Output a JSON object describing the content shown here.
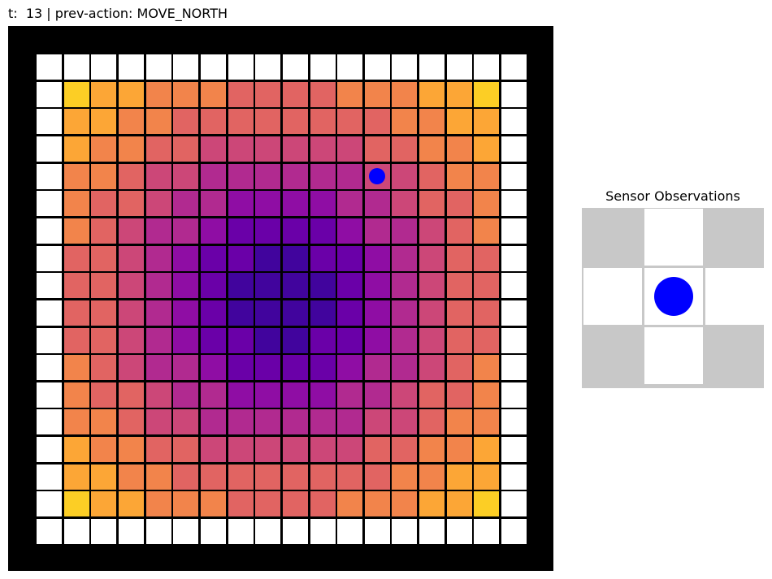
{
  "header": {
    "status_text": "t:  13 | prev-action: MOVE_NORTH"
  },
  "environment": {
    "grid_size": 18,
    "agent": {
      "row": 4,
      "col": 12,
      "color": "#0000ff"
    },
    "border_color": "#ffffff",
    "palette": [
      "#0d0887",
      "#41049d",
      "#6a00a8",
      "#8f0da4",
      "#b12a90",
      "#cc4778",
      "#e16462",
      "#f2844b",
      "#fca636",
      "#fcce25"
    ]
  },
  "sensor": {
    "title": "Sensor Observations",
    "cells": [
      [
        "unknown",
        "free",
        "unknown"
      ],
      [
        "free",
        "agent",
        "free"
      ],
      [
        "unknown",
        "free",
        "unknown"
      ]
    ],
    "colors": {
      "unknown": "#c8c8c8",
      "free": "#ffffff",
      "agent": "#ffffff"
    },
    "agent_color": "#0000ff"
  }
}
